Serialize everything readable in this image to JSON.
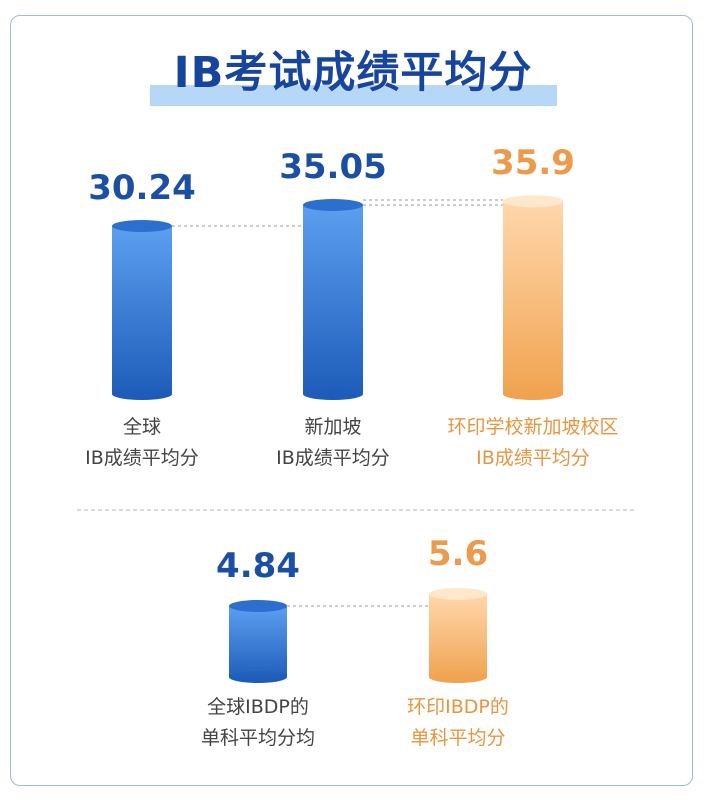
{
  "title": "IB考试成绩平均分",
  "colors": {
    "blue_top": "#5c9ff0",
    "blue_bottom": "#1d5bb8",
    "orange_top": "#ffd7ac",
    "orange_bottom": "#f0a24e",
    "title": "#17459d",
    "highlight": "#b7d7f7"
  },
  "chart_data": [
    {
      "type": "bar",
      "categories": [
        "全球IB成绩平均分",
        "新加坡IB成绩平均分",
        "环印学校新加坡校区IB成绩平均分"
      ],
      "values": [
        30.24,
        35.05,
        35.9
      ],
      "value_labels": [
        "30.24",
        "35.05",
        "35.9"
      ],
      "label_lines": [
        [
          "全球",
          "IB成绩平均分"
        ],
        [
          "新加坡",
          "IB成绩平均分"
        ],
        [
          "环印学校新加坡校区",
          "IB成绩平均分"
        ]
      ],
      "highlight_index": 2
    },
    {
      "type": "bar",
      "categories": [
        "全球IBDP的单科平均分均",
        "环印IBDP的单科平均分"
      ],
      "values": [
        4.84,
        5.6
      ],
      "value_labels": [
        "4.84",
        "5.6"
      ],
      "label_lines": [
        [
          "全球IBDP的",
          "单科平均分均"
        ],
        [
          "环印IBDP的",
          "单科平均分"
        ]
      ],
      "highlight_index": 1
    }
  ]
}
